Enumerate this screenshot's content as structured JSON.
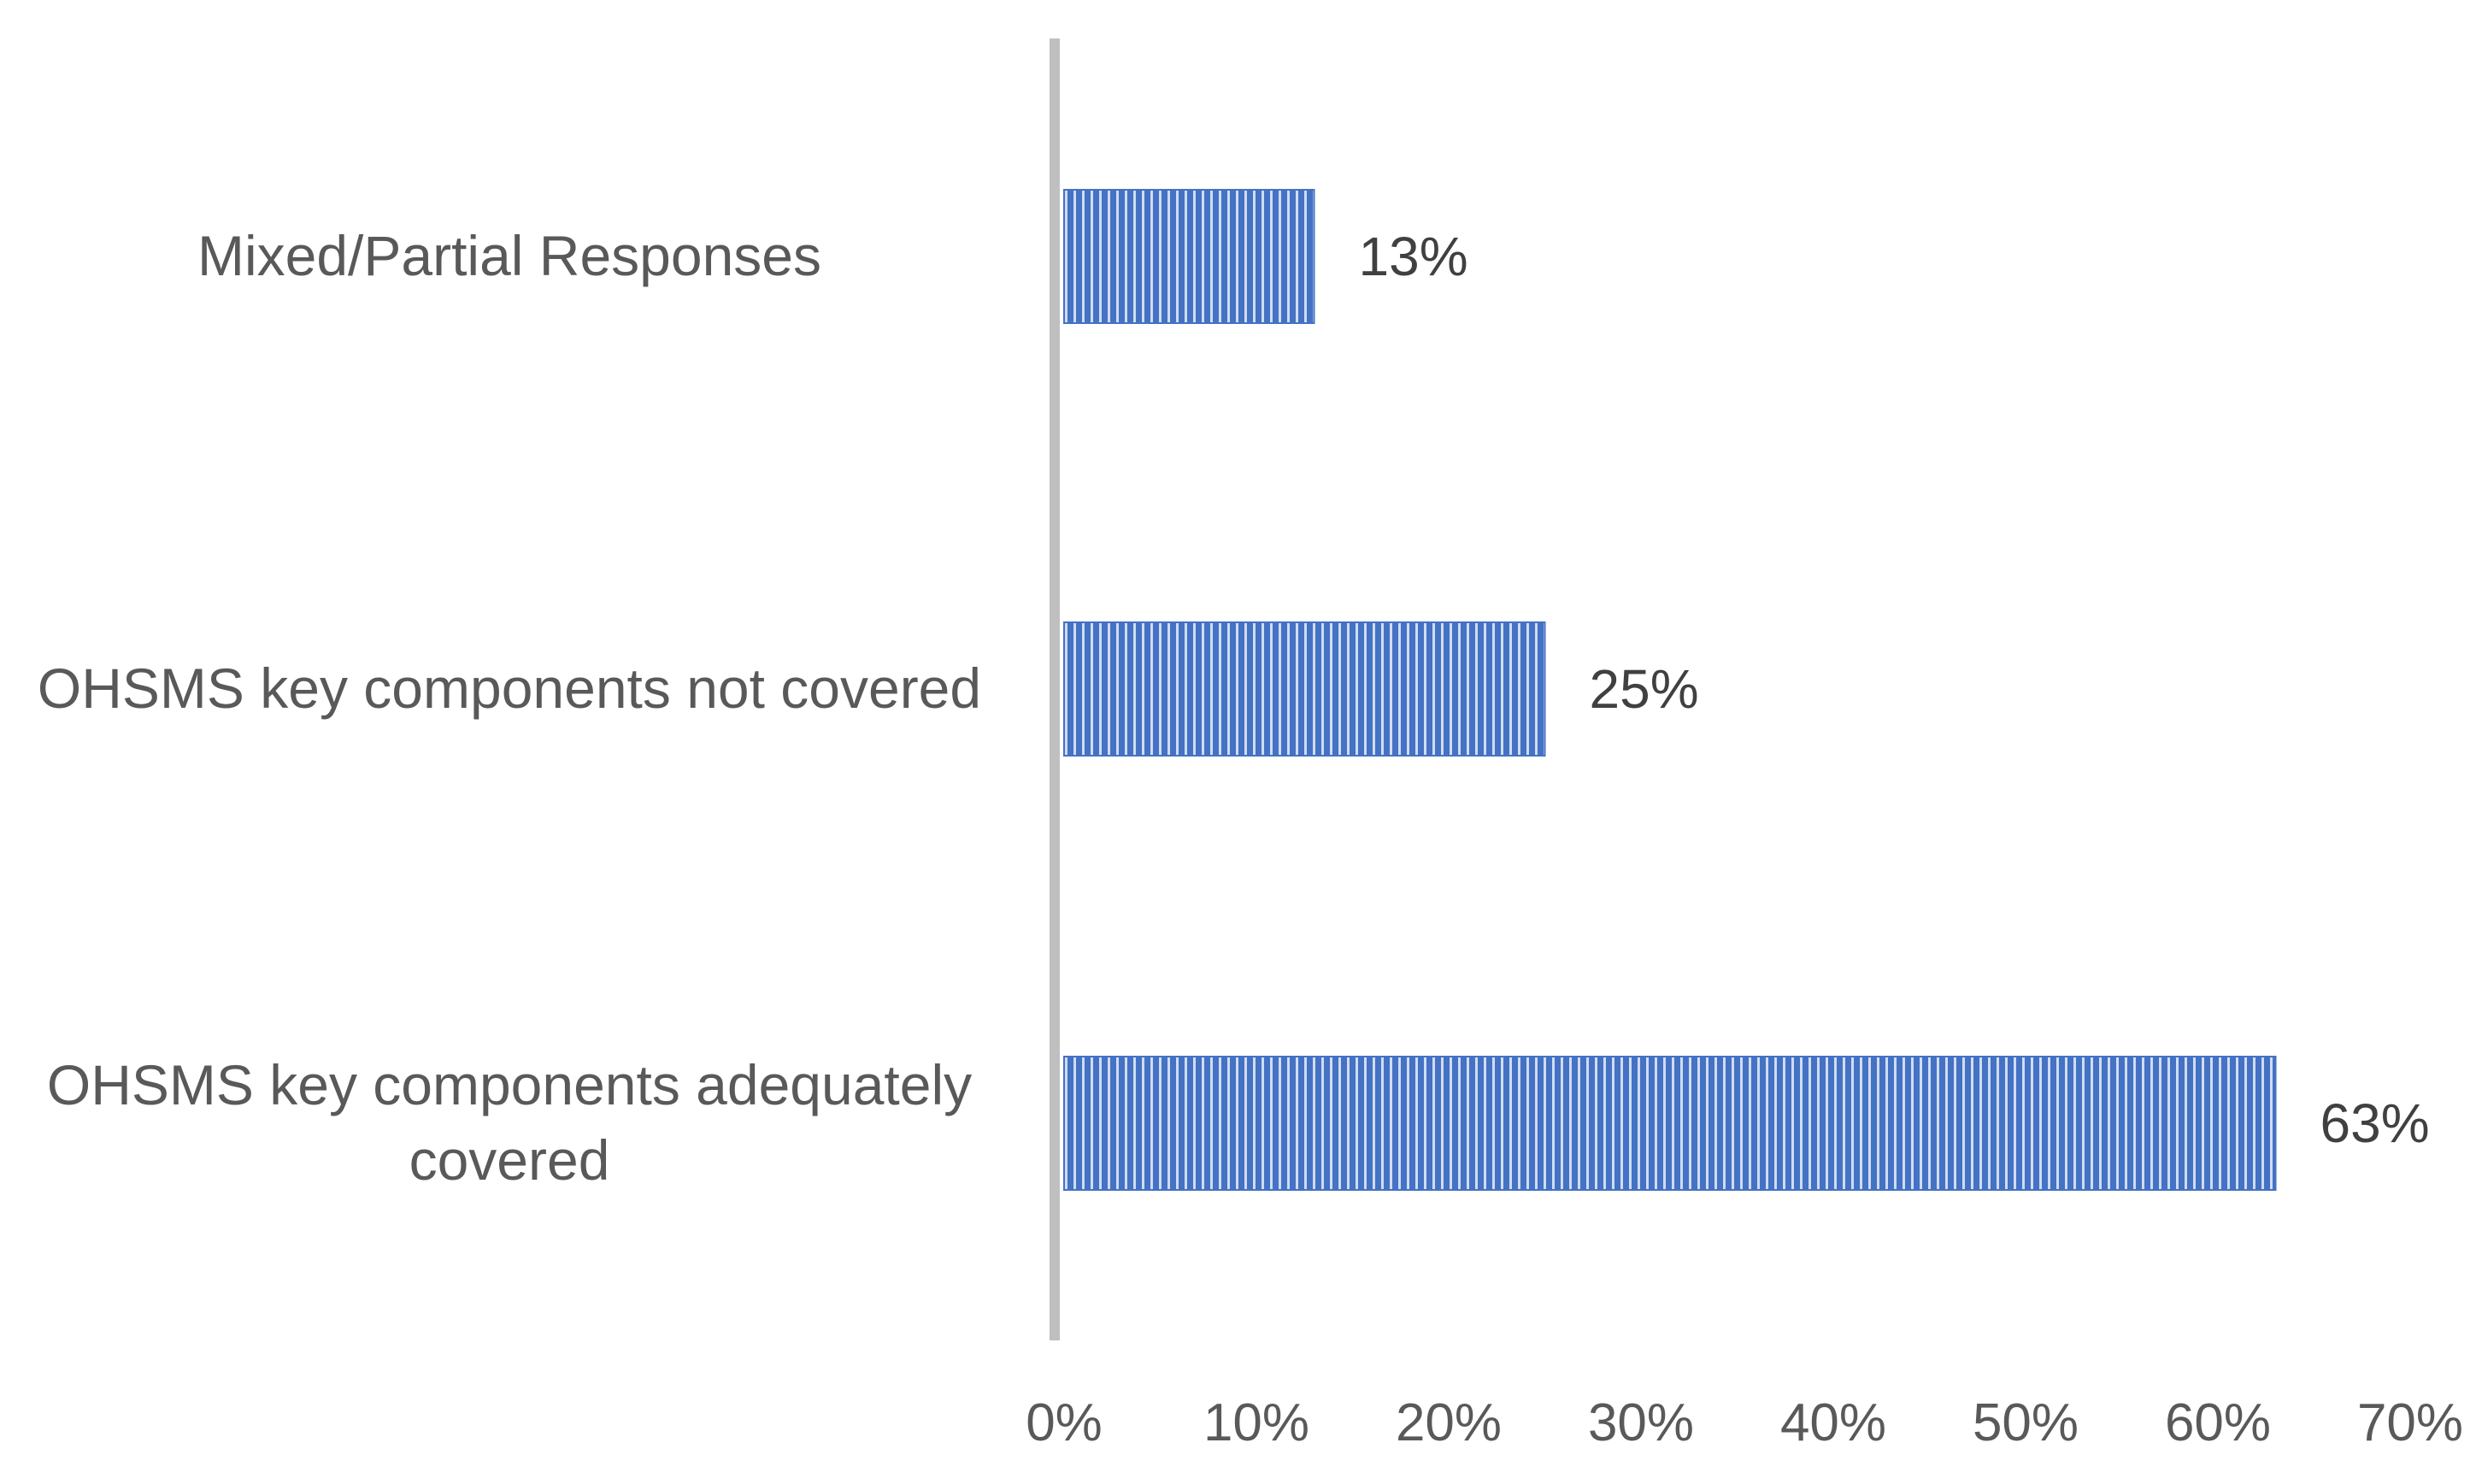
{
  "chart_data": {
    "type": "bar",
    "orientation": "horizontal",
    "title": "",
    "xlabel": "",
    "ylabel": "",
    "categories": [
      "Mixed/Partial Responses",
      "OHSMS key components not covered",
      "OHSMS key components adequately covered"
    ],
    "category_lines": [
      [
        "Mixed/Partial Responses"
      ],
      [
        "OHSMS key components not covered"
      ],
      [
        "OHSMS key components adequately",
        "covered"
      ]
    ],
    "values": [
      13,
      25,
      63
    ],
    "data_labels": [
      "13%",
      "25%",
      "63%"
    ],
    "xlim": [
      0,
      70
    ],
    "x_ticks": [
      "0%",
      "10%",
      "20%",
      "30%",
      "40%",
      "50%",
      "60%",
      "70%"
    ],
    "grid": false,
    "legend": "none",
    "colors": {
      "bar_fill": "#4472c4",
      "bar_stripe": "#ffffff",
      "axis_line": "#bfbfbf",
      "text": "#595959"
    }
  }
}
